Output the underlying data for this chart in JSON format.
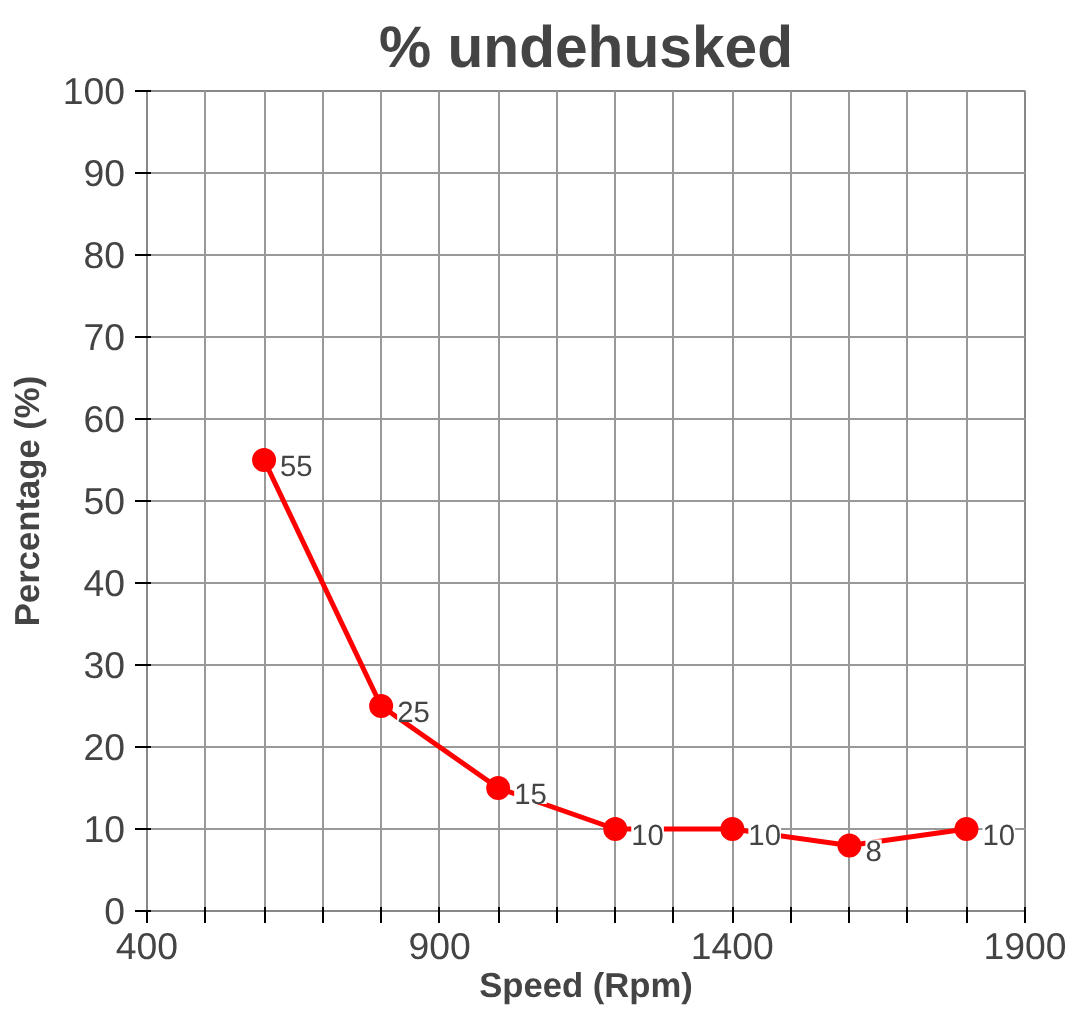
{
  "chart_data": {
    "type": "line",
    "title": "% undehusked",
    "xlabel": "Speed (Rpm)",
    "ylabel": "Percentage (%)",
    "x": [
      600,
      800,
      1000,
      1200,
      1400,
      1600,
      1800
    ],
    "series": [
      {
        "color": "#ff0000",
        "values": [
          55,
          25,
          15,
          10,
          10,
          8,
          10
        ]
      }
    ],
    "xlim": [
      400,
      1900
    ],
    "xticks": [
      400,
      {
        "value": 500,
        "label": null
      },
      {
        "value": 600,
        "label": null
      },
      {
        "value": 700,
        "label": null
      },
      {
        "value": 800,
        "label": null
      },
      900,
      {
        "value": 1000,
        "label": null
      },
      {
        "value": 1100,
        "label": null
      },
      {
        "value": 1200,
        "label": null
      },
      {
        "value": 1300,
        "label": null
      },
      1400,
      {
        "value": 1500,
        "label": null
      },
      {
        "value": 1600,
        "label": null
      },
      {
        "value": 1700,
        "label": null
      },
      {
        "value": 1800,
        "label": null
      },
      1900
    ],
    "ylim": [
      0,
      100
    ],
    "yticks": [
      0,
      10,
      20,
      30,
      40,
      50,
      60,
      70,
      80,
      90,
      100
    ],
    "grid": true,
    "marker": "circle",
    "line_style": "solid",
    "data_labels": true
  }
}
